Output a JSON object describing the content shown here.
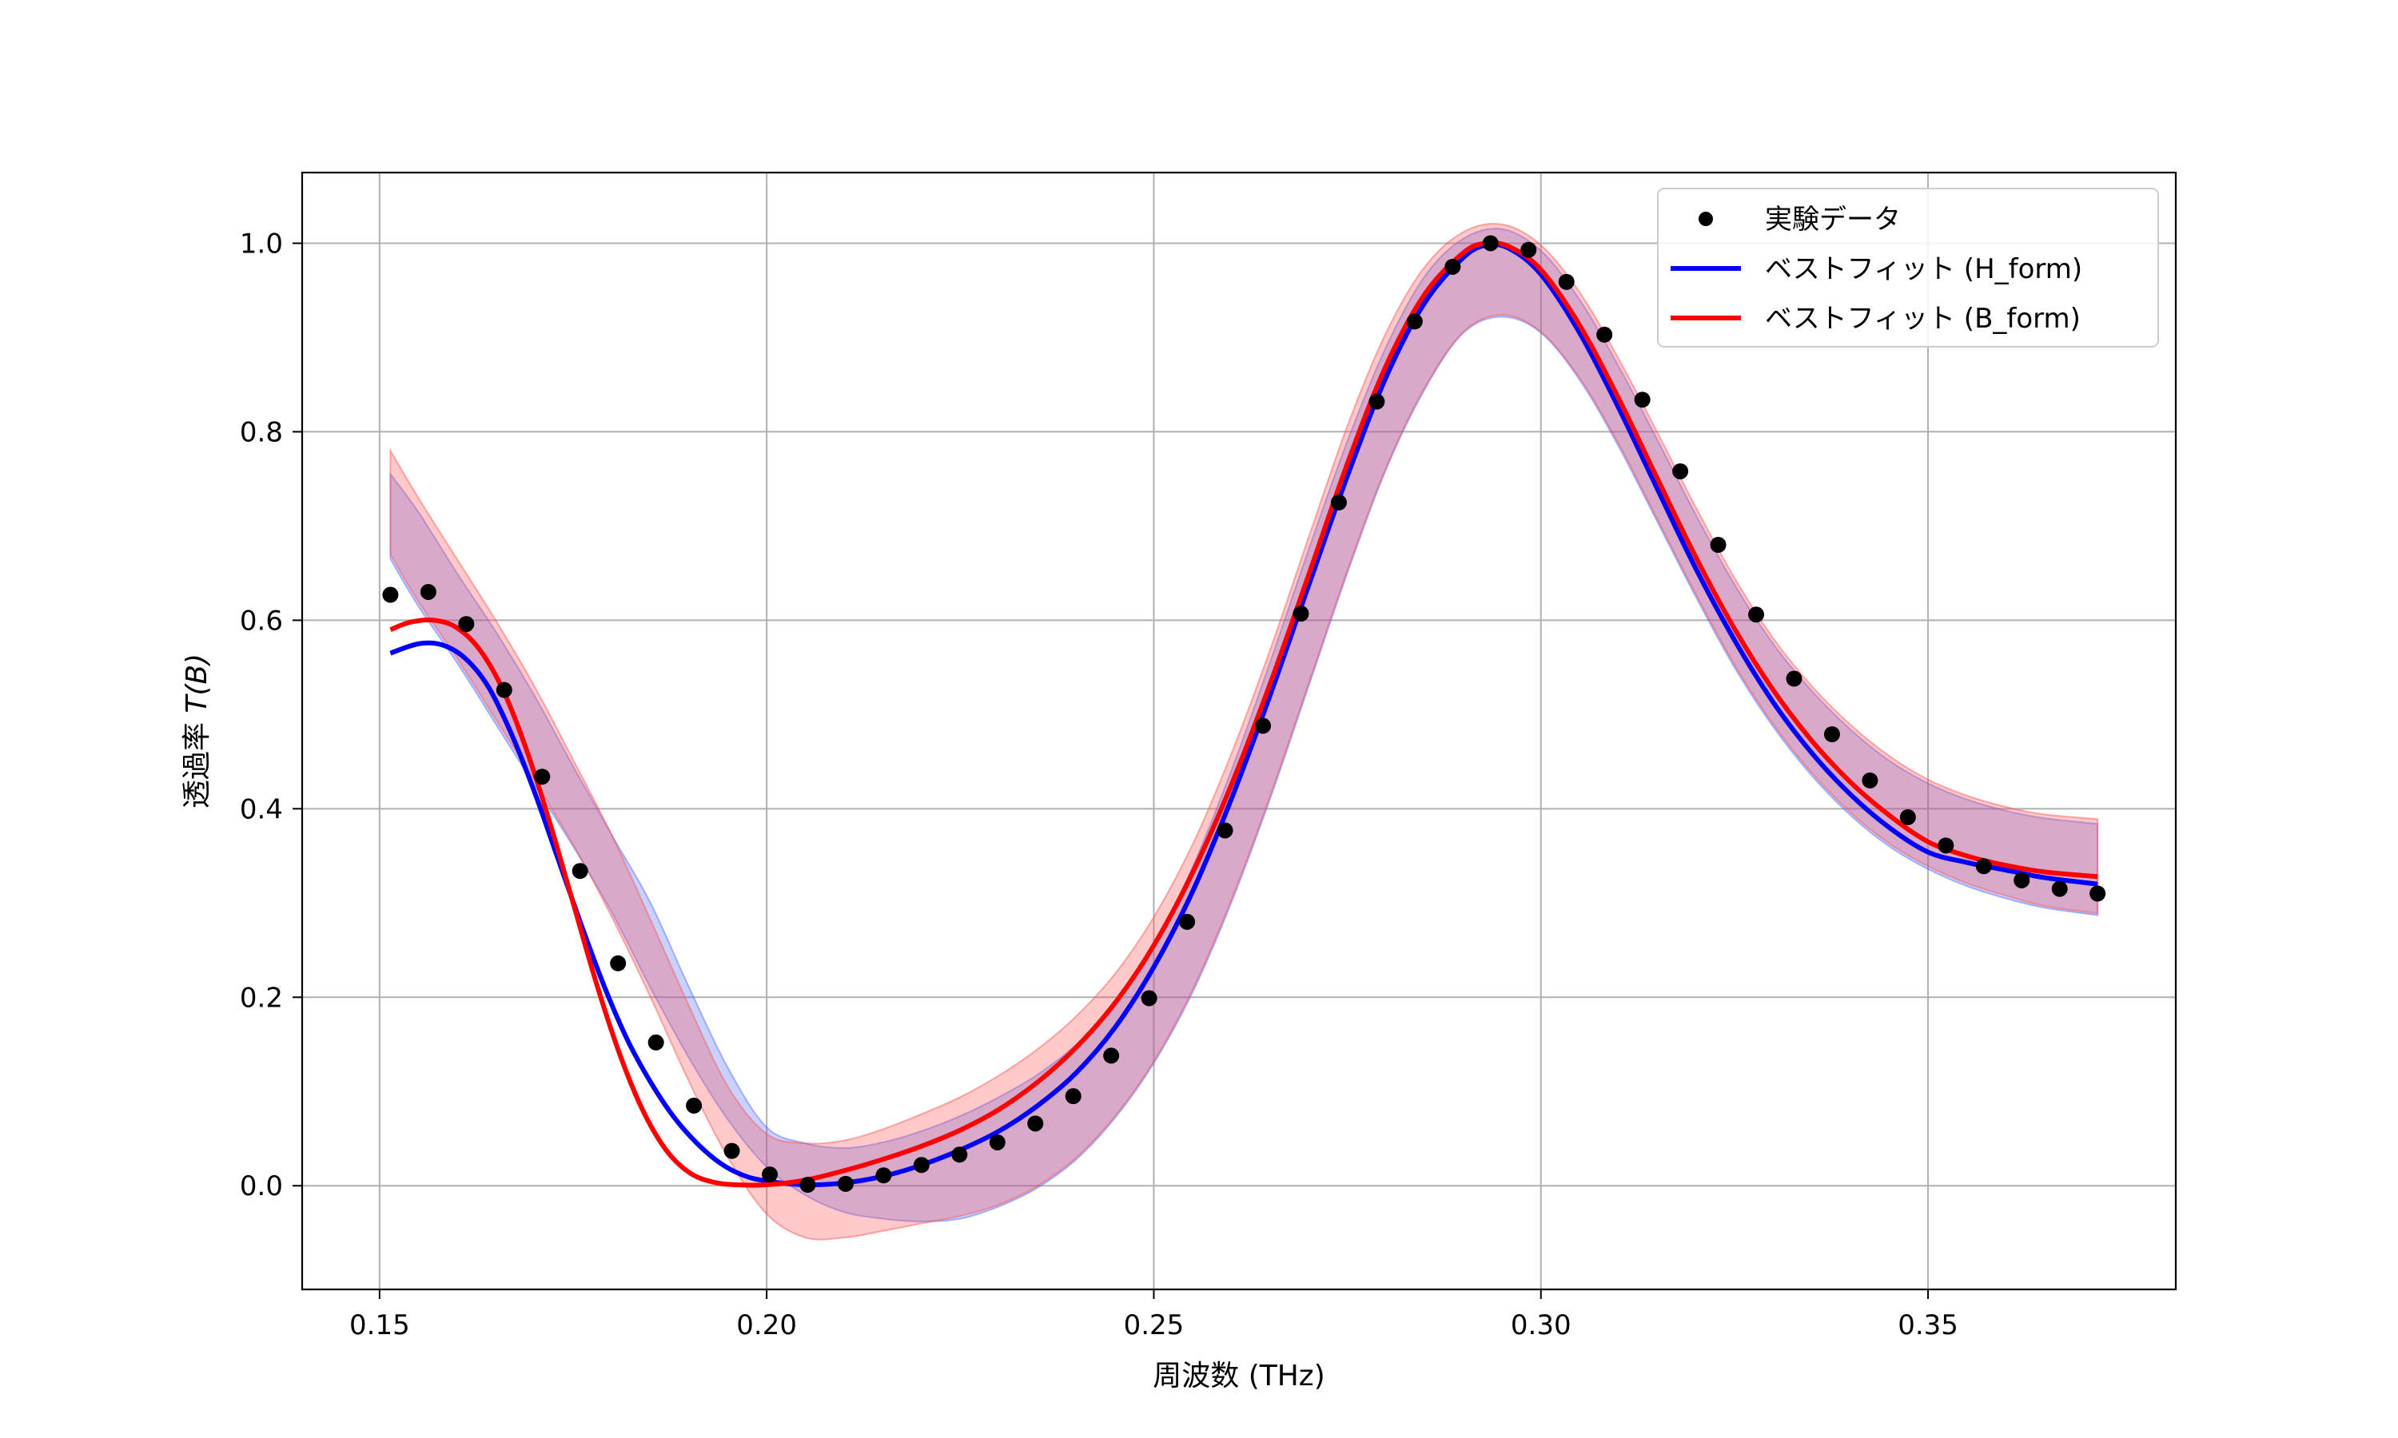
{
  "chart_data": {
    "type": "line",
    "title": "",
    "xlabel": "周波数 (THz)",
    "ylabel": "透過率 T(B)",
    "ylabel_prefix": "透過率 ",
    "ylabel_symbol": "T(B)",
    "xlim": [
      0.14,
      0.382
    ],
    "ylim": [
      -0.11,
      1.075
    ],
    "x_ticks": [
      0.15,
      0.2,
      0.25,
      0.3,
      0.35
    ],
    "x_tick_labels": [
      "0.15",
      "0.20",
      "0.25",
      "0.30",
      "0.35"
    ],
    "y_ticks": [
      0.0,
      0.2,
      0.4,
      0.6,
      0.8,
      1.0
    ],
    "y_tick_labels": [
      "0.0",
      "0.2",
      "0.4",
      "0.6",
      "0.8",
      "1.0"
    ],
    "grid": true,
    "legend_position": "top-right",
    "colors": {
      "data": "#000000",
      "h_form": "#0000ff",
      "b_form": "#ff0000",
      "h_band": "#4d66ff",
      "b_band": "#ff4d4d",
      "grid": "#b0b0b0"
    },
    "series": [
      {
        "name": "実験データ",
        "kind": "scatter",
        "x": [
          0.1514,
          0.1563,
          0.1612,
          0.1661,
          0.171,
          0.1759,
          0.1808,
          0.1857,
          0.1906,
          0.1955,
          0.2004,
          0.2053,
          0.2102,
          0.2151,
          0.22,
          0.2249,
          0.2298,
          0.2347,
          0.2396,
          0.2445,
          0.2494,
          0.2543,
          0.2592,
          0.2641,
          0.269,
          0.2739,
          0.2788,
          0.2837,
          0.2886,
          0.2935,
          0.2984,
          0.3033,
          0.3082,
          0.3131,
          0.318,
          0.3229,
          0.3278,
          0.3327,
          0.3376,
          0.3425,
          0.3474,
          0.3523,
          0.3572,
          0.3621,
          0.367,
          0.3719
        ],
        "y": [
          0.627,
          0.63,
          0.596,
          0.526,
          0.434,
          0.334,
          0.236,
          0.152,
          0.085,
          0.037,
          0.012,
          0.001,
          0.002,
          0.011,
          0.022,
          0.033,
          0.046,
          0.066,
          0.095,
          0.138,
          0.199,
          0.28,
          0.377,
          0.488,
          0.607,
          0.725,
          0.832,
          0.917,
          0.975,
          1.0,
          0.993,
          0.959,
          0.903,
          0.834,
          0.758,
          0.68,
          0.606,
          0.538,
          0.479,
          0.43,
          0.391,
          0.361,
          0.339,
          0.324,
          0.315,
          0.31
        ]
      },
      {
        "name": "ベストフィット (H_form)",
        "kind": "line",
        "x": [
          0.1514,
          0.155,
          0.158,
          0.161,
          0.164,
          0.167,
          0.17,
          0.173,
          0.176,
          0.179,
          0.182,
          0.185,
          0.188,
          0.191,
          0.194,
          0.197,
          0.2,
          0.205,
          0.21,
          0.215,
          0.22,
          0.225,
          0.23,
          0.235,
          0.24,
          0.245,
          0.25,
          0.255,
          0.26,
          0.265,
          0.27,
          0.275,
          0.28,
          0.285,
          0.29,
          0.293,
          0.296,
          0.3,
          0.305,
          0.31,
          0.315,
          0.32,
          0.325,
          0.33,
          0.335,
          0.34,
          0.345,
          0.35,
          0.355,
          0.36,
          0.365,
          0.3719
        ],
        "y": [
          0.565,
          0.575,
          0.574,
          0.56,
          0.53,
          0.48,
          0.418,
          0.348,
          0.278,
          0.212,
          0.155,
          0.11,
          0.073,
          0.045,
          0.024,
          0.011,
          0.005,
          0.001,
          0.003,
          0.01,
          0.022,
          0.038,
          0.058,
          0.085,
          0.12,
          0.168,
          0.232,
          0.312,
          0.41,
          0.52,
          0.637,
          0.753,
          0.858,
          0.937,
          0.985,
          0.998,
          0.994,
          0.967,
          0.905,
          0.826,
          0.74,
          0.655,
          0.579,
          0.513,
          0.459,
          0.415,
          0.38,
          0.354,
          0.343,
          0.335,
          0.327,
          0.32
        ]
      },
      {
        "name": "ベストフィット (B_form)",
        "kind": "line",
        "x": [
          0.1514,
          0.154,
          0.157,
          0.16,
          0.163,
          0.166,
          0.169,
          0.172,
          0.175,
          0.178,
          0.181,
          0.184,
          0.187,
          0.19,
          0.193,
          0.196,
          0.2,
          0.205,
          0.21,
          0.215,
          0.22,
          0.225,
          0.23,
          0.235,
          0.24,
          0.245,
          0.25,
          0.255,
          0.26,
          0.265,
          0.27,
          0.275,
          0.28,
          0.285,
          0.29,
          0.293,
          0.296,
          0.3,
          0.305,
          0.31,
          0.315,
          0.32,
          0.325,
          0.33,
          0.335,
          0.34,
          0.345,
          0.35,
          0.355,
          0.36,
          0.365,
          0.3719
        ],
        "y": [
          0.59,
          0.598,
          0.6,
          0.592,
          0.568,
          0.525,
          0.462,
          0.385,
          0.3,
          0.215,
          0.14,
          0.08,
          0.038,
          0.014,
          0.004,
          0.001,
          0.001,
          0.006,
          0.016,
          0.028,
          0.042,
          0.059,
          0.081,
          0.11,
          0.147,
          0.194,
          0.255,
          0.332,
          0.425,
          0.532,
          0.648,
          0.766,
          0.87,
          0.946,
          0.99,
          1.0,
          0.996,
          0.972,
          0.913,
          0.836,
          0.751,
          0.667,
          0.591,
          0.526,
          0.472,
          0.428,
          0.393,
          0.365,
          0.35,
          0.34,
          0.333,
          0.328
        ]
      }
    ],
    "bands": [
      {
        "for": "ベストフィット (H_form)",
        "x": [
          0.1514,
          0.155,
          0.16,
          0.165,
          0.17,
          0.175,
          0.18,
          0.185,
          0.19,
          0.195,
          0.2,
          0.205,
          0.21,
          0.215,
          0.22,
          0.225,
          0.23,
          0.235,
          0.24,
          0.245,
          0.25,
          0.255,
          0.26,
          0.265,
          0.27,
          0.275,
          0.28,
          0.285,
          0.29,
          0.295,
          0.3,
          0.305,
          0.31,
          0.315,
          0.32,
          0.325,
          0.33,
          0.335,
          0.34,
          0.345,
          0.35,
          0.355,
          0.36,
          0.365,
          0.3719
        ],
        "lower": [
          0.665,
          0.615,
          0.555,
          0.49,
          0.425,
          0.36,
          0.29,
          0.21,
          0.135,
          0.07,
          0.02,
          -0.01,
          -0.028,
          -0.035,
          -0.038,
          -0.035,
          -0.022,
          -0.002,
          0.028,
          0.072,
          0.13,
          0.205,
          0.3,
          0.41,
          0.53,
          0.65,
          0.76,
          0.845,
          0.905,
          0.922,
          0.905,
          0.855,
          0.785,
          0.705,
          0.625,
          0.55,
          0.487,
          0.435,
          0.393,
          0.36,
          0.336,
          0.318,
          0.305,
          0.295,
          0.287
        ],
        "upper": [
          0.755,
          0.715,
          0.65,
          0.588,
          0.52,
          0.445,
          0.372,
          0.3,
          0.21,
          0.125,
          0.062,
          0.045,
          0.04,
          0.046,
          0.058,
          0.074,
          0.094,
          0.118,
          0.15,
          0.195,
          0.255,
          0.338,
          0.44,
          0.555,
          0.675,
          0.79,
          0.89,
          0.965,
          1.005,
          1.015,
          0.992,
          0.94,
          0.87,
          0.792,
          0.712,
          0.638,
          0.575,
          0.525,
          0.484,
          0.451,
          0.427,
          0.41,
          0.398,
          0.39,
          0.384
        ]
      },
      {
        "for": "ベストフィット (B_form)",
        "x": [
          0.1514,
          0.155,
          0.16,
          0.165,
          0.17,
          0.175,
          0.18,
          0.185,
          0.19,
          0.195,
          0.2,
          0.205,
          0.21,
          0.215,
          0.22,
          0.225,
          0.23,
          0.235,
          0.24,
          0.245,
          0.25,
          0.255,
          0.26,
          0.265,
          0.27,
          0.275,
          0.28,
          0.285,
          0.29,
          0.295,
          0.3,
          0.305,
          0.31,
          0.315,
          0.32,
          0.325,
          0.33,
          0.335,
          0.34,
          0.345,
          0.35,
          0.355,
          0.36,
          0.365,
          0.3719
        ],
        "lower": [
          0.67,
          0.62,
          0.56,
          0.495,
          0.43,
          0.362,
          0.285,
          0.2,
          0.11,
          0.03,
          -0.03,
          -0.055,
          -0.055,
          -0.048,
          -0.04,
          -0.032,
          -0.02,
          0.0,
          0.03,
          0.074,
          0.132,
          0.208,
          0.303,
          0.413,
          0.533,
          0.653,
          0.762,
          0.847,
          0.906,
          0.924,
          0.906,
          0.857,
          0.788,
          0.708,
          0.628,
          0.553,
          0.49,
          0.438,
          0.396,
          0.363,
          0.339,
          0.321,
          0.308,
          0.297,
          0.289
        ],
        "upper": [
          0.78,
          0.73,
          0.665,
          0.6,
          0.53,
          0.452,
          0.372,
          0.282,
          0.19,
          0.105,
          0.055,
          0.045,
          0.048,
          0.06,
          0.076,
          0.094,
          0.117,
          0.145,
          0.18,
          0.225,
          0.285,
          0.362,
          0.458,
          0.568,
          0.688,
          0.806,
          0.905,
          0.975,
          1.012,
          1.02,
          0.998,
          0.948,
          0.878,
          0.8,
          0.72,
          0.645,
          0.581,
          0.53,
          0.489,
          0.456,
          0.431,
          0.414,
          0.402,
          0.394,
          0.389
        ]
      }
    ]
  }
}
